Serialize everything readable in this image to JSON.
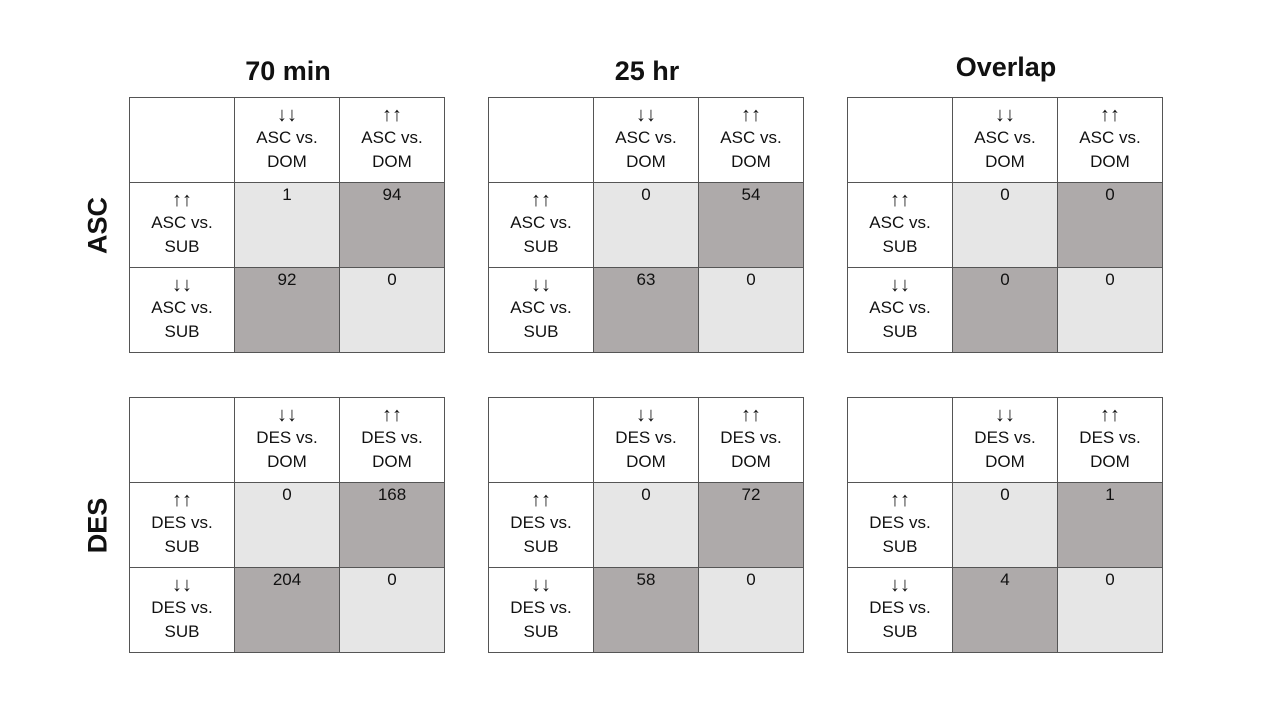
{
  "column_titles": [
    "70 min",
    "25 hr",
    "Overlap"
  ],
  "row_labels": [
    "ASC",
    "DES"
  ],
  "arrows": {
    "down": "↓↓",
    "up": "↑↑"
  },
  "panels": {
    "asc": {
      "col_headers": [
        {
          "arrow": "↓↓",
          "line1": "ASC vs.",
          "line2": "DOM"
        },
        {
          "arrow": "↑↑",
          "line1": "ASC vs.",
          "line2": "DOM"
        }
      ],
      "row_headers": [
        {
          "arrow": "↑↑",
          "line1": "ASC vs.",
          "line2": "SUB"
        },
        {
          "arrow": "↓↓",
          "line1": "ASC vs.",
          "line2": "SUB"
        }
      ]
    },
    "des": {
      "col_headers": [
        {
          "arrow": "↓↓",
          "line1": "DES vs.",
          "line2": "DOM"
        },
        {
          "arrow": "↑↑",
          "line1": "DES vs.",
          "line2": "DOM"
        }
      ],
      "row_headers": [
        {
          "arrow": "↑↑",
          "line1": "DES vs.",
          "line2": "SUB"
        },
        {
          "arrow": "↓↓",
          "line1": "DES vs.",
          "line2": "SUB"
        }
      ]
    }
  },
  "values": {
    "asc_70min": [
      [
        "1",
        "94"
      ],
      [
        "92",
        "0"
      ]
    ],
    "asc_25hr": [
      [
        "0",
        "54"
      ],
      [
        "63",
        "0"
      ]
    ],
    "asc_overlap": [
      [
        "0",
        "0"
      ],
      [
        "0",
        "0"
      ]
    ],
    "des_70min": [
      [
        "0",
        "168"
      ],
      [
        "204",
        "0"
      ]
    ],
    "des_25hr": [
      [
        "0",
        "72"
      ],
      [
        "58",
        "0"
      ]
    ],
    "des_overlap": [
      [
        "0",
        "1"
      ],
      [
        "4",
        "0"
      ]
    ]
  },
  "colors": {
    "light_cell": "#e6e6e6",
    "dark_cell": "#aeaaaa",
    "border": "#555555"
  }
}
